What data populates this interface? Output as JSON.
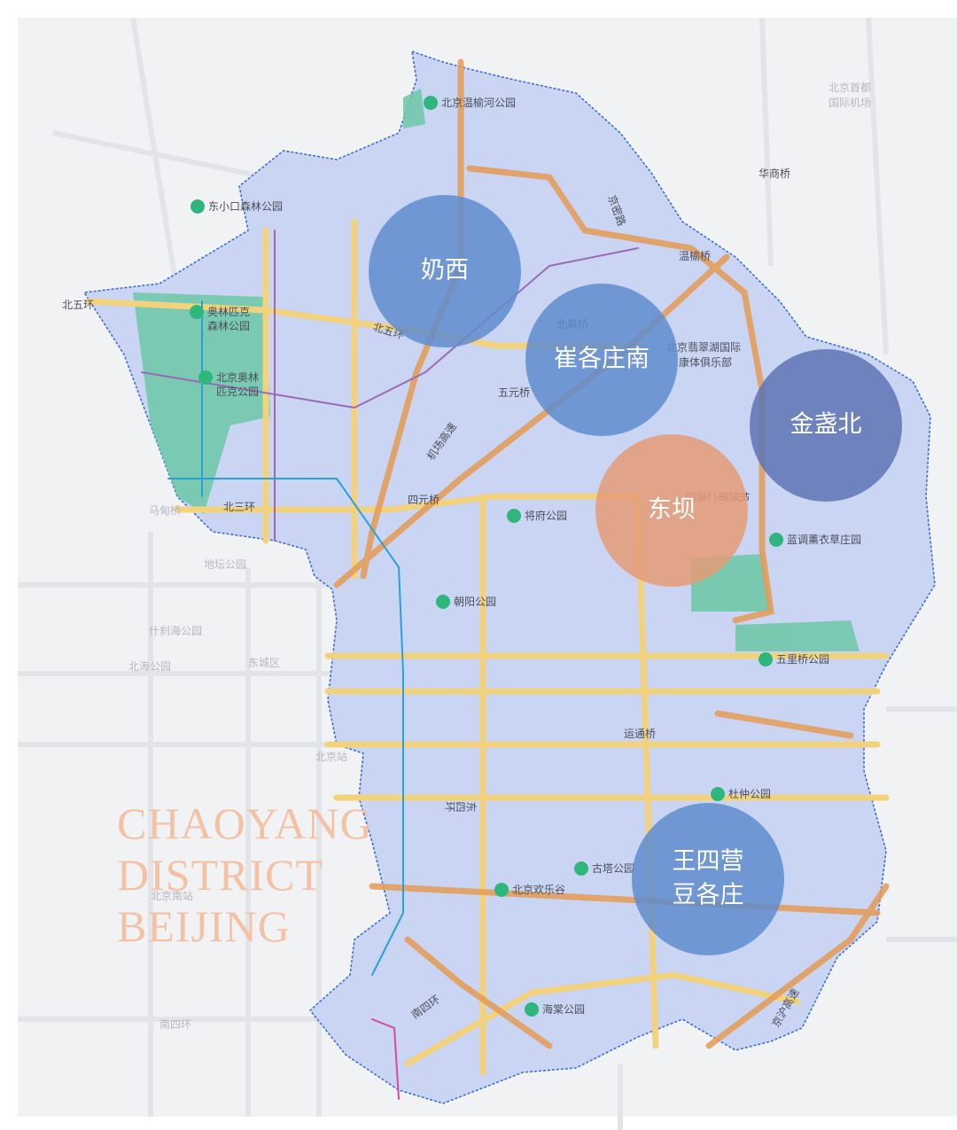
{
  "district_label": [
    "CHAOYANG",
    "DISTRICT",
    "BEIJING"
  ],
  "areas": [
    {
      "label": [
        "奶西"
      ]
    },
    {
      "label": [
        "崔各庄南"
      ]
    },
    {
      "label": [
        "金盏北"
      ]
    },
    {
      "label": [
        "东坝"
      ]
    },
    {
      "label": [
        "王四营",
        "豆各庄"
      ]
    }
  ],
  "places": [
    "北京温榆河公园",
    "东小口森林公园",
    "北五环",
    "奥林匹克",
    "森林公园",
    "北京奥林",
    "匹克公园",
    "北五环",
    "北皋桥",
    "五元桥",
    "北京翡翠湖国际",
    "康体俱乐部",
    "温榆桥",
    "华商桥",
    "北京首都",
    "国际机场",
    "京密路",
    "机场高速",
    "四元桥",
    "将府公园",
    "马甸桥",
    "北三环",
    "地坛公园",
    "什刹海公园",
    "北海公园",
    "东城区",
    "朝阳公园",
    "蓝调薰衣草庄园",
    "五里桥公园",
    "运通桥",
    "北京站",
    "东四环",
    "杜仲公园",
    "古塔公园",
    "北京欢乐谷",
    "北京南站",
    "南四环",
    "海棠公园",
    "京沪高速",
    "南四环",
    "机场第二高速"
  ]
}
